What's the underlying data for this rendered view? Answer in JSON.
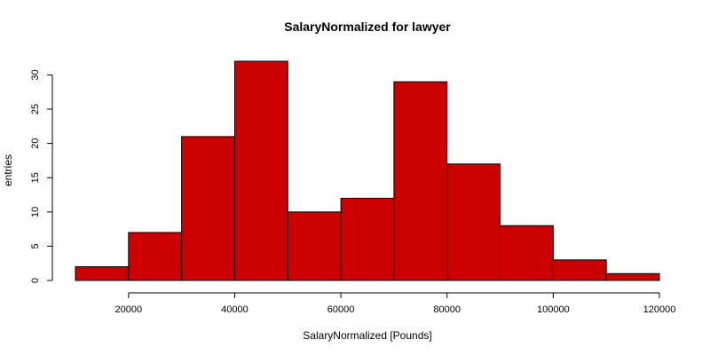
{
  "chart_data": {
    "type": "bar",
    "title": "SalaryNormalized for lawyer",
    "xlabel": "SalaryNormalized [Pounds]",
    "ylabel": "entries",
    "bins": [
      {
        "x0": 10000,
        "x1": 20000,
        "count": 2
      },
      {
        "x0": 20000,
        "x1": 30000,
        "count": 7
      },
      {
        "x0": 30000,
        "x1": 40000,
        "count": 21
      },
      {
        "x0": 40000,
        "x1": 50000,
        "count": 32
      },
      {
        "x0": 50000,
        "x1": 60000,
        "count": 10
      },
      {
        "x0": 60000,
        "x1": 70000,
        "count": 12
      },
      {
        "x0": 70000,
        "x1": 80000,
        "count": 29
      },
      {
        "x0": 80000,
        "x1": 90000,
        "count": 17
      },
      {
        "x0": 90000,
        "x1": 100000,
        "count": 8
      },
      {
        "x0": 100000,
        "x1": 110000,
        "count": 3
      },
      {
        "x0": 110000,
        "x1": 120000,
        "count": 1
      }
    ],
    "xlim": [
      10000,
      120000
    ],
    "ylim": [
      0,
      32
    ],
    "x_ticks": [
      20000,
      40000,
      60000,
      80000,
      100000,
      120000
    ],
    "y_ticks": [
      0,
      5,
      10,
      15,
      20,
      25,
      30
    ],
    "bar_color": "#cc0000",
    "grid": false
  }
}
